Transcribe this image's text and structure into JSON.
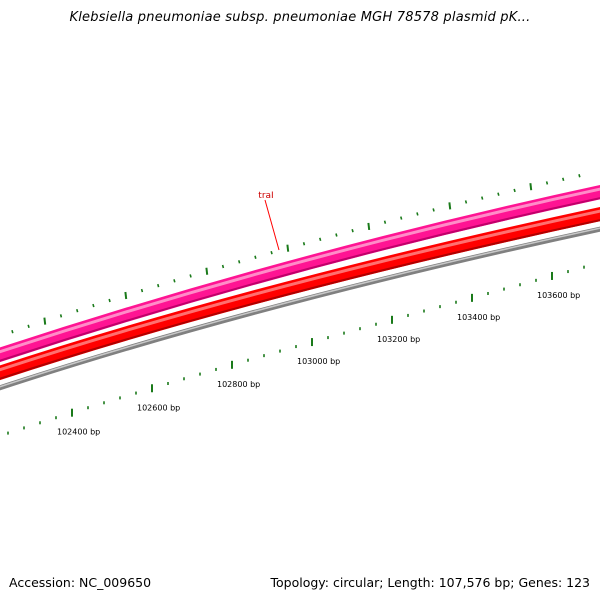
{
  "title": "Klebsiella pneumoniae subsp. pneumoniae MGH 78578 plasmid pK...",
  "map": {
    "tracks": [
      {
        "name": "forward-strand-cds",
        "color": "#ff1493",
        "highlight": "#ff8cc8"
      },
      {
        "name": "reverse-strand-cds",
        "color": "#ff0000",
        "highlight": "#ff7070"
      },
      {
        "name": "backbone",
        "color": "#808080",
        "highlight": "#c8c8c8"
      }
    ],
    "gene_labels": [
      {
        "name": "traI",
        "color": "#cc0000"
      }
    ],
    "tick_color": "#1a7a1a",
    "bp_ticks": [
      {
        "label": "102400 bp"
      },
      {
        "label": "102600 bp"
      },
      {
        "label": "102800 bp"
      },
      {
        "label": "103000 bp"
      },
      {
        "label": "103200 bp"
      },
      {
        "label": "103400 bp"
      },
      {
        "label": "103600 bp"
      }
    ]
  },
  "footer": {
    "accession": "Accession: NC_009650",
    "summary": "Topology: circular; Length: 107,576 bp; Genes: 123"
  }
}
